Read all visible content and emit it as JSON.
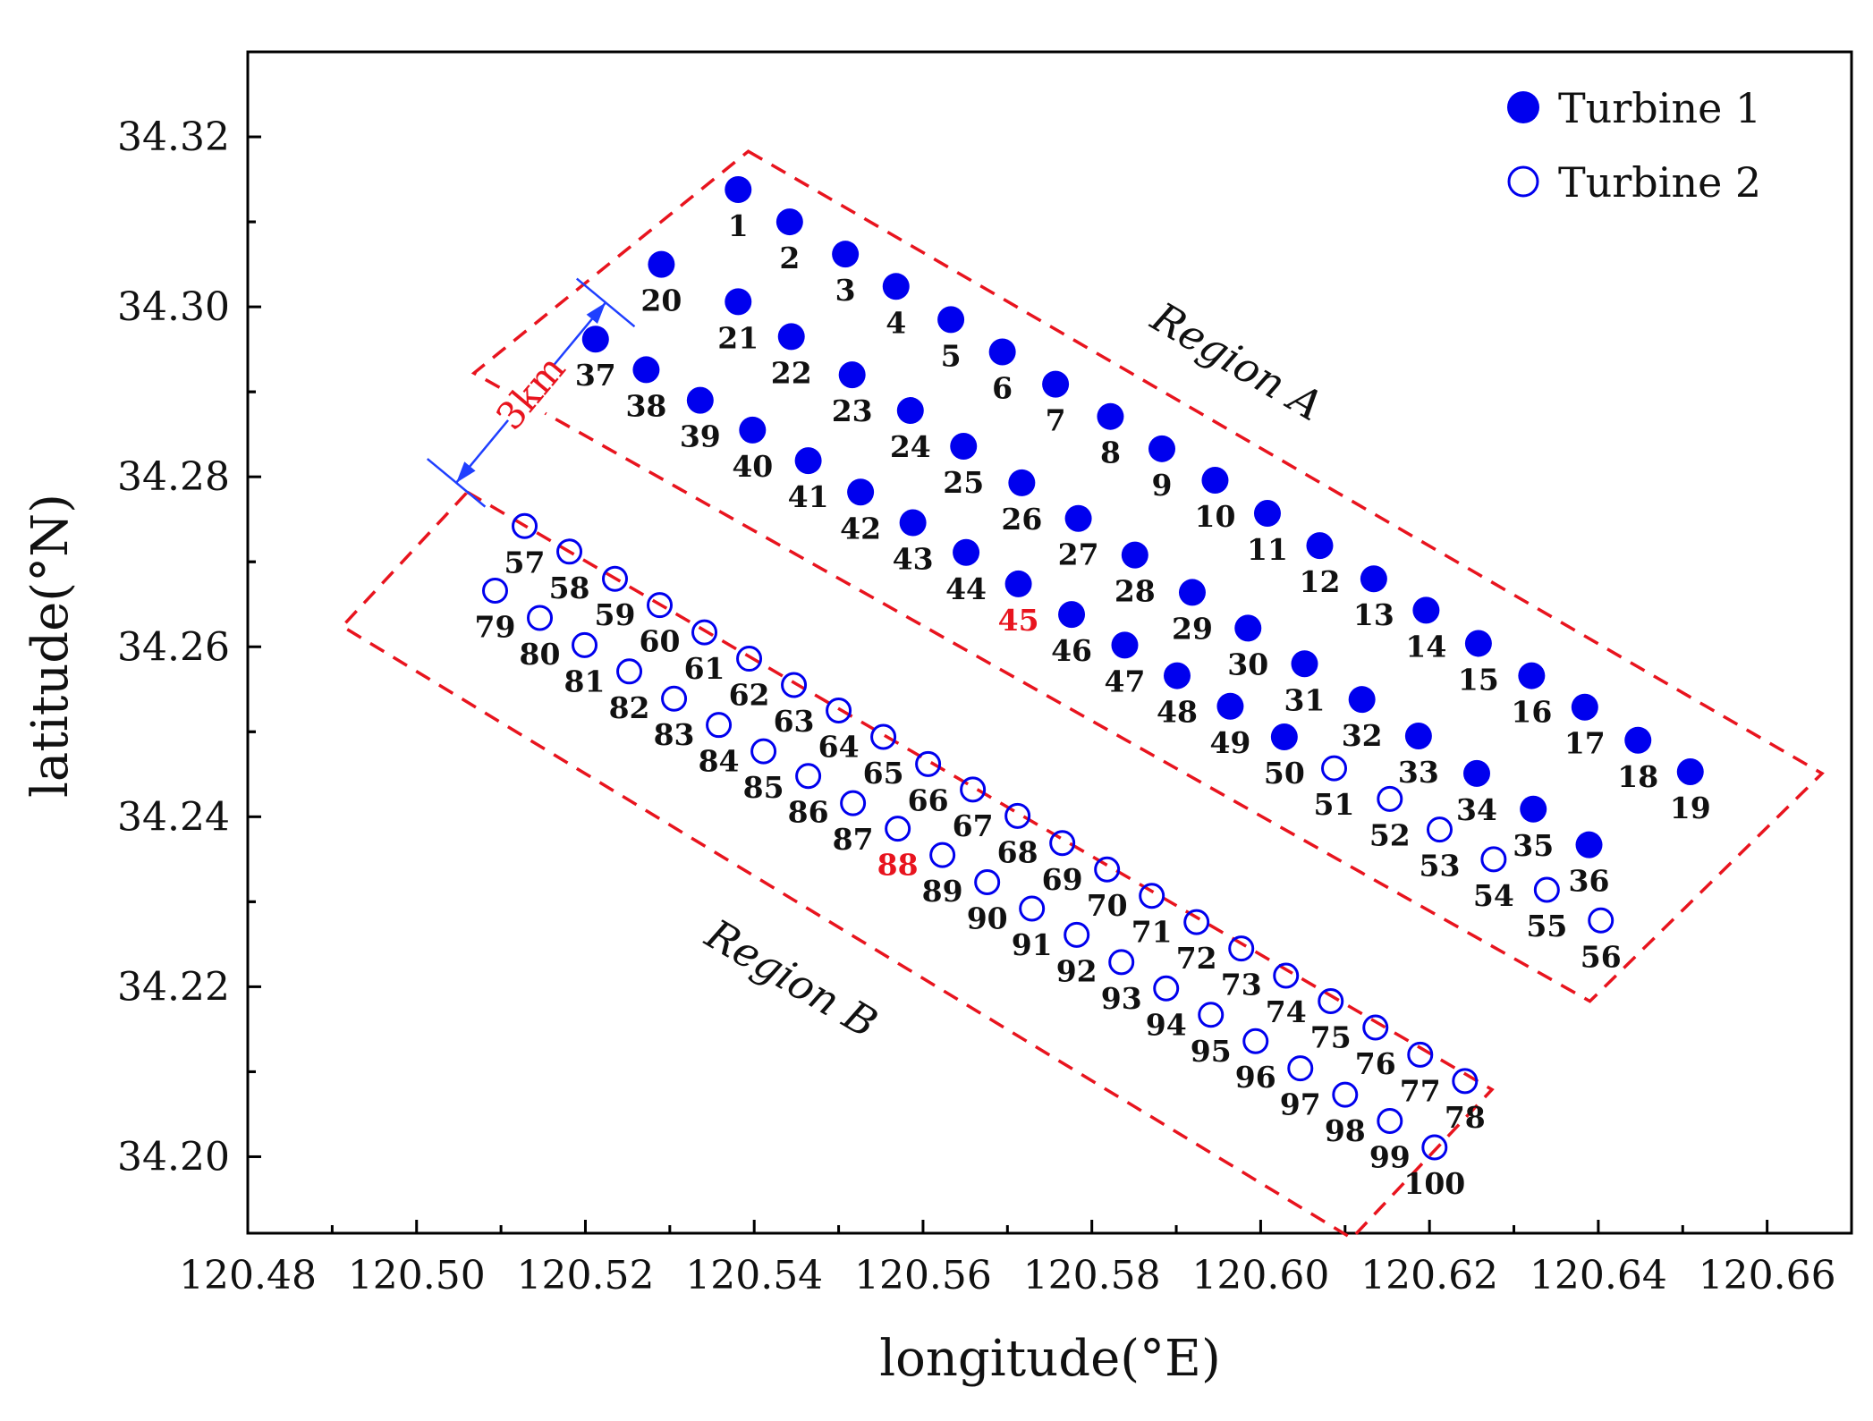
{
  "chart_data": {
    "type": "scatter",
    "xlabel": "longitude(°E)",
    "ylabel": "latitude(°N)",
    "xlim": [
      120.48,
      120.67
    ],
    "ylim": [
      34.191,
      34.33
    ],
    "xticks": [
      "120.48",
      "120.50",
      "120.52",
      "120.54",
      "120.56",
      "120.58",
      "120.60",
      "120.62",
      "120.64",
      "120.66"
    ],
    "yticks": [
      "34.20",
      "34.22",
      "34.24",
      "34.26",
      "34.28",
      "34.30",
      "34.32"
    ],
    "highlight_color": "#e8141e",
    "marker_color": "#0000ee",
    "series": [
      {
        "name": "Turbine 1",
        "marker": "filled-circle",
        "points": [
          {
            "id": "1",
            "x": 120.5381,
            "y": 34.3138
          },
          {
            "id": "2",
            "x": 120.5442,
            "y": 34.31
          },
          {
            "id": "3",
            "x": 120.5508,
            "y": 34.3062
          },
          {
            "id": "4",
            "x": 120.5568,
            "y": 34.3024
          },
          {
            "id": "5",
            "x": 120.5633,
            "y": 34.2985
          },
          {
            "id": "6",
            "x": 120.5694,
            "y": 34.2947
          },
          {
            "id": "7",
            "x": 120.5757,
            "y": 34.2909
          },
          {
            "id": "8",
            "x": 120.5822,
            "y": 34.2871
          },
          {
            "id": "9",
            "x": 120.5883,
            "y": 34.2833
          },
          {
            "id": "10",
            "x": 120.5946,
            "y": 34.2796
          },
          {
            "id": "11",
            "x": 120.6008,
            "y": 34.2757
          },
          {
            "id": "12",
            "x": 120.607,
            "y": 34.2719
          },
          {
            "id": "13",
            "x": 120.6134,
            "y": 34.268
          },
          {
            "id": "14",
            "x": 120.6196,
            "y": 34.2643
          },
          {
            "id": "15",
            "x": 120.6258,
            "y": 34.2604
          },
          {
            "id": "16",
            "x": 120.6321,
            "y": 34.2566
          },
          {
            "id": "17",
            "x": 120.6384,
            "y": 34.2529
          },
          {
            "id": "18",
            "x": 120.6447,
            "y": 34.249
          },
          {
            "id": "19",
            "x": 120.6509,
            "y": 34.2453
          },
          {
            "id": "20",
            "x": 120.529,
            "y": 34.305
          },
          {
            "id": "21",
            "x": 120.5381,
            "y": 34.3006
          },
          {
            "id": "22",
            "x": 120.5444,
            "y": 34.2965
          },
          {
            "id": "23",
            "x": 120.5516,
            "y": 34.292
          },
          {
            "id": "24",
            "x": 120.5585,
            "y": 34.2878
          },
          {
            "id": "25",
            "x": 120.5648,
            "y": 34.2836
          },
          {
            "id": "26",
            "x": 120.5717,
            "y": 34.2793
          },
          {
            "id": "27",
            "x": 120.5784,
            "y": 34.2751
          },
          {
            "id": "28",
            "x": 120.5851,
            "y": 34.2708
          },
          {
            "id": "29",
            "x": 120.5919,
            "y": 34.2664
          },
          {
            "id": "30",
            "x": 120.5985,
            "y": 34.2622
          },
          {
            "id": "31",
            "x": 120.6052,
            "y": 34.258
          },
          {
            "id": "32",
            "x": 120.612,
            "y": 34.2538
          },
          {
            "id": "33",
            "x": 120.6187,
            "y": 34.2495
          },
          {
            "id": "34",
            "x": 120.6256,
            "y": 34.2451
          },
          {
            "id": "35",
            "x": 120.6323,
            "y": 34.2409
          },
          {
            "id": "36",
            "x": 120.6389,
            "y": 34.2367
          },
          {
            "id": "37",
            "x": 120.5212,
            "y": 34.2962
          },
          {
            "id": "38",
            "x": 120.5272,
            "y": 34.2926
          },
          {
            "id": "39",
            "x": 120.5336,
            "y": 34.289
          },
          {
            "id": "40",
            "x": 120.5398,
            "y": 34.2855
          },
          {
            "id": "41",
            "x": 120.5464,
            "y": 34.2819
          },
          {
            "id": "42",
            "x": 120.5526,
            "y": 34.2782
          },
          {
            "id": "43",
            "x": 120.5588,
            "y": 34.2746
          },
          {
            "id": "44",
            "x": 120.5651,
            "y": 34.2711
          },
          {
            "id": "45",
            "x": 120.5713,
            "y": 34.2674
          },
          {
            "id": "46",
            "x": 120.5776,
            "y": 34.2638
          },
          {
            "id": "47",
            "x": 120.5839,
            "y": 34.2602
          },
          {
            "id": "48",
            "x": 120.5901,
            "y": 34.2566
          },
          {
            "id": "49",
            "x": 120.5964,
            "y": 34.253
          },
          {
            "id": "50",
            "x": 120.6028,
            "y": 34.2494
          }
        ]
      },
      {
        "name": "Turbine 2",
        "marker": "open-circle",
        "points": [
          {
            "id": "51",
            "x": 120.6087,
            "y": 34.2457
          },
          {
            "id": "52",
            "x": 120.6153,
            "y": 34.2421
          },
          {
            "id": "53",
            "x": 120.6212,
            "y": 34.2385
          },
          {
            "id": "54",
            "x": 120.6276,
            "y": 34.235
          },
          {
            "id": "55",
            "x": 120.6339,
            "y": 34.2314
          },
          {
            "id": "56",
            "x": 120.6403,
            "y": 34.2278
          },
          {
            "id": "57",
            "x": 120.5128,
            "y": 34.2742
          },
          {
            "id": "58",
            "x": 120.5181,
            "y": 34.2712
          },
          {
            "id": "59",
            "x": 120.5235,
            "y": 34.268
          },
          {
            "id": "60",
            "x": 120.5288,
            "y": 34.2649
          },
          {
            "id": "61",
            "x": 120.5341,
            "y": 34.2617
          },
          {
            "id": "62",
            "x": 120.5394,
            "y": 34.2586
          },
          {
            "id": "63",
            "x": 120.5447,
            "y": 34.2555
          },
          {
            "id": "64",
            "x": 120.55,
            "y": 34.2525
          },
          {
            "id": "65",
            "x": 120.5553,
            "y": 34.2494
          },
          {
            "id": "66",
            "x": 120.5606,
            "y": 34.2462
          },
          {
            "id": "67",
            "x": 120.5659,
            "y": 34.2432
          },
          {
            "id": "68",
            "x": 120.5712,
            "y": 34.2401
          },
          {
            "id": "69",
            "x": 120.5765,
            "y": 34.2369
          },
          {
            "id": "70",
            "x": 120.5818,
            "y": 34.2338
          },
          {
            "id": "71",
            "x": 120.5871,
            "y": 34.2307
          },
          {
            "id": "72",
            "x": 120.5924,
            "y": 34.2276
          },
          {
            "id": "73",
            "x": 120.5977,
            "y": 34.2245
          },
          {
            "id": "74",
            "x": 120.603,
            "y": 34.2213
          },
          {
            "id": "75",
            "x": 120.6083,
            "y": 34.2183
          },
          {
            "id": "76",
            "x": 120.6136,
            "y": 34.2152
          },
          {
            "id": "77",
            "x": 120.6189,
            "y": 34.212
          },
          {
            "id": "78",
            "x": 120.6242,
            "y": 34.2089
          },
          {
            "id": "79",
            "x": 120.5093,
            "y": 34.2666
          },
          {
            "id": "80",
            "x": 120.5146,
            "y": 34.2634
          },
          {
            "id": "81",
            "x": 120.5199,
            "y": 34.2602
          },
          {
            "id": "82",
            "x": 120.5252,
            "y": 34.2571
          },
          {
            "id": "83",
            "x": 120.5305,
            "y": 34.2539
          },
          {
            "id": "84",
            "x": 120.5358,
            "y": 34.2508
          },
          {
            "id": "85",
            "x": 120.5411,
            "y": 34.2477
          },
          {
            "id": "86",
            "x": 120.5464,
            "y": 34.2448
          },
          {
            "id": "87",
            "x": 120.5517,
            "y": 34.2416
          },
          {
            "id": "88",
            "x": 120.557,
            "y": 34.2386
          },
          {
            "id": "89",
            "x": 120.5623,
            "y": 34.2355
          },
          {
            "id": "90",
            "x": 120.5676,
            "y": 34.2323
          },
          {
            "id": "91",
            "x": 120.5729,
            "y": 34.2292
          },
          {
            "id": "92",
            "x": 120.5782,
            "y": 34.2261
          },
          {
            "id": "93",
            "x": 120.5835,
            "y": 34.2229
          },
          {
            "id": "94",
            "x": 120.5888,
            "y": 34.2198
          },
          {
            "id": "95",
            "x": 120.5941,
            "y": 34.2167
          },
          {
            "id": "96",
            "x": 120.5994,
            "y": 34.2136
          },
          {
            "id": "97",
            "x": 120.6047,
            "y": 34.2104
          },
          {
            "id": "98",
            "x": 120.61,
            "y": 34.2073
          },
          {
            "id": "99",
            "x": 120.6153,
            "y": 34.2042
          },
          {
            "id": "100",
            "x": 120.6206,
            "y": 34.2011
          }
        ]
      }
    ],
    "highlighted_ids": [
      "45",
      "88"
    ],
    "regions": [
      {
        "name": "Region A",
        "corners": [
          [
            120.5393,
            34.3183
          ],
          [
            120.6665,
            34.2451
          ],
          [
            120.639,
            34.2183
          ],
          [
            120.5068,
            34.2922
          ]
        ]
      },
      {
        "name": "Region B",
        "corners": [
          [
            120.506,
            34.2782
          ],
          [
            120.6274,
            34.2079
          ],
          [
            120.6108,
            34.1904
          ],
          [
            120.4912,
            34.2624
          ]
        ]
      }
    ],
    "distance_annotation": {
      "text": "3km",
      "from": [
        120.5224,
        34.3005
      ],
      "to": [
        120.5047,
        34.2793
      ]
    },
    "legend": {
      "position": "top-right",
      "entries": [
        "Turbine 1",
        "Turbine 2"
      ]
    }
  }
}
